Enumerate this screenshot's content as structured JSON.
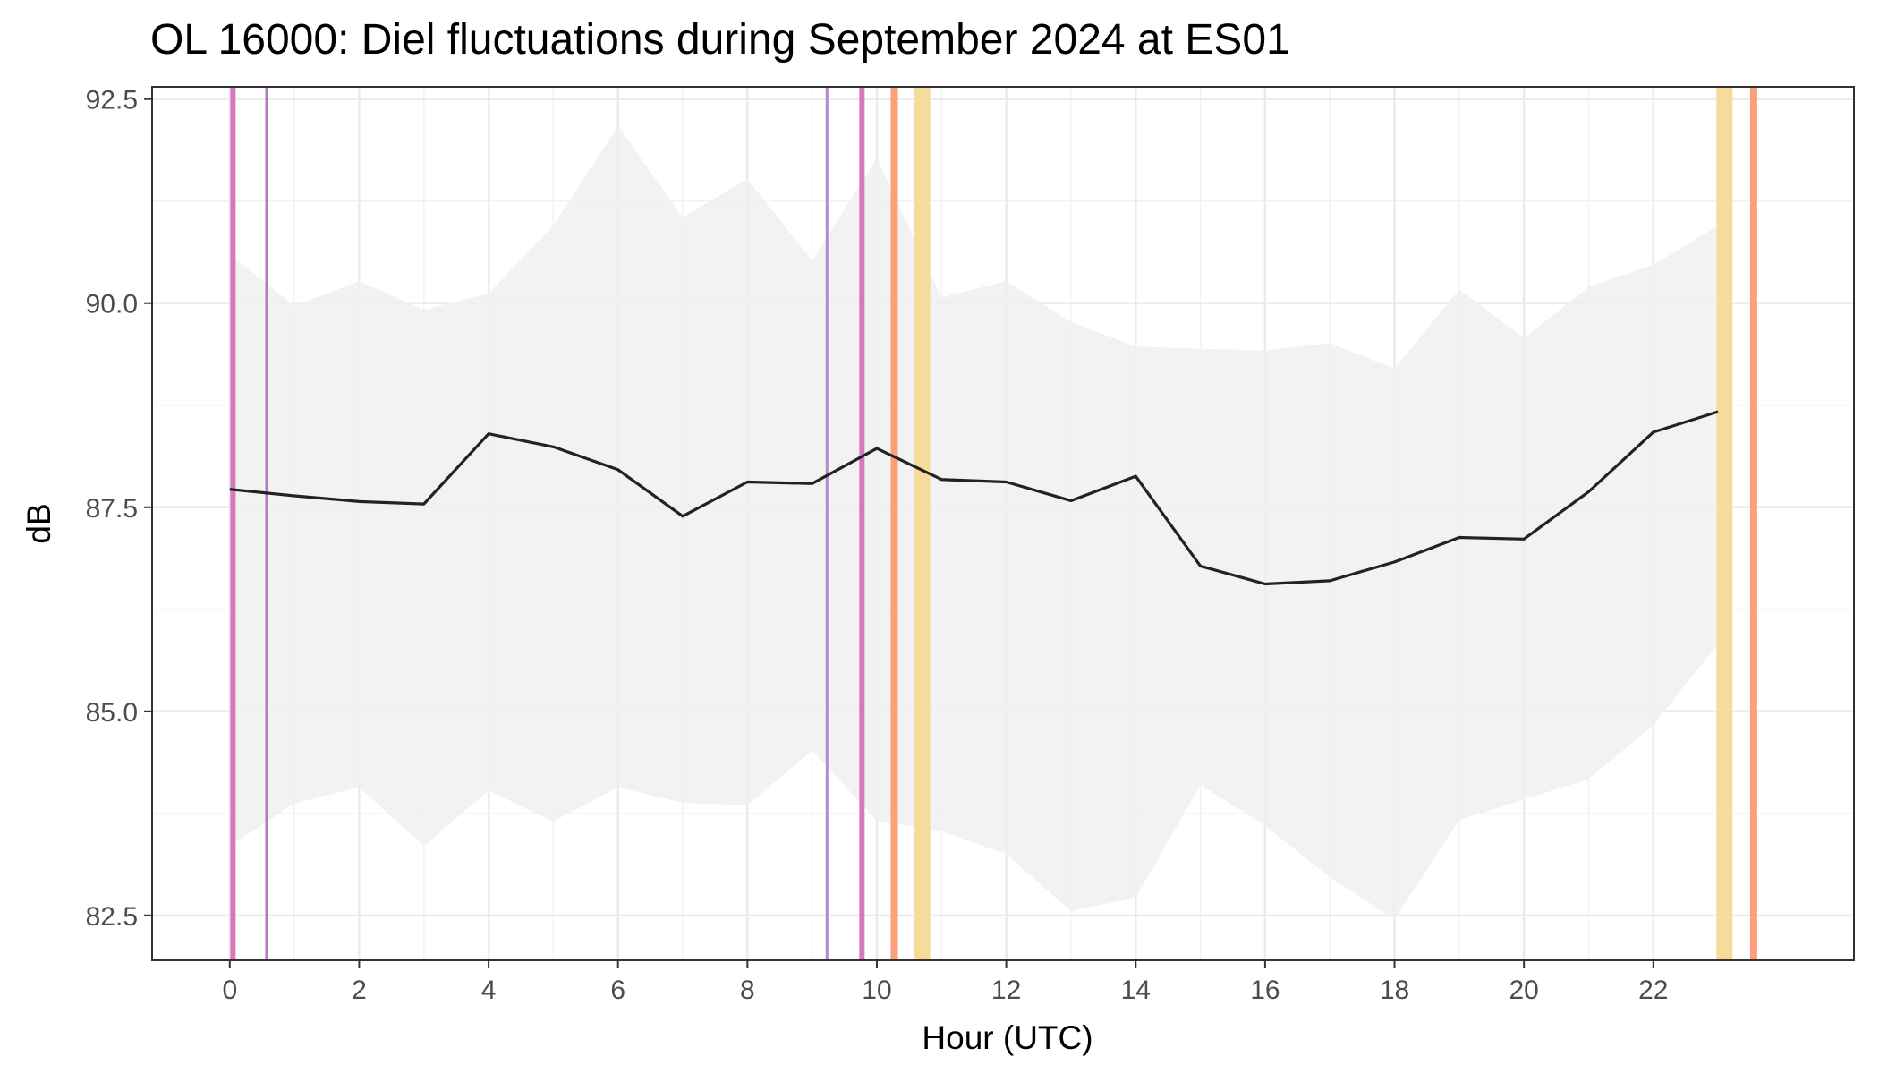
{
  "chart_data": {
    "type": "line",
    "title": "OL 16000: Diel fluctuations during September 2024 at ES01",
    "xlabel": "Hour (UTC)",
    "ylabel": "dB",
    "xlim": [
      -1.2,
      25.1
    ],
    "ylim": [
      81.95,
      92.65
    ],
    "x_ticks": [
      0,
      2,
      4,
      6,
      8,
      10,
      12,
      14,
      16,
      18,
      20,
      22
    ],
    "y_ticks": [
      82.5,
      85.0,
      87.5,
      90.0,
      92.5
    ],
    "y_tick_labels": [
      "82.5",
      "85.0",
      "87.5",
      "90.0",
      "92.5"
    ],
    "grid": true,
    "legend": "none",
    "series": [
      {
        "type": "line",
        "color": "#222222",
        "x": [
          0,
          1,
          2,
          3,
          4,
          5,
          6,
          7,
          8,
          9,
          10,
          11,
          12,
          13,
          14,
          15,
          16,
          17,
          18,
          19,
          20,
          21,
          22,
          23
        ],
        "values": [
          87.72,
          87.64,
          87.57,
          87.54,
          88.4,
          88.24,
          87.96,
          87.39,
          87.81,
          87.79,
          88.22,
          87.84,
          87.81,
          87.58,
          87.88,
          86.78,
          86.56,
          86.6,
          86.83,
          87.13,
          87.11,
          87.69,
          88.42,
          88.67
        ]
      }
    ],
    "ribbon": {
      "color": "#f0f0f0",
      "x": [
        0,
        1,
        2,
        3,
        4,
        5,
        6,
        7,
        8,
        9,
        10,
        11,
        12,
        13,
        14,
        15,
        16,
        17,
        18,
        19,
        20,
        21,
        22,
        23
      ],
      "lower": [
        83.35,
        83.87,
        84.07,
        83.35,
        84.03,
        83.65,
        84.07,
        83.88,
        83.85,
        84.52,
        83.66,
        83.53,
        83.25,
        82.55,
        82.72,
        84.1,
        83.6,
        82.97,
        82.45,
        83.67,
        83.92,
        84.17,
        84.83,
        85.83
      ],
      "upper": [
        90.6,
        89.97,
        90.27,
        89.92,
        90.12,
        90.95,
        92.17,
        91.05,
        91.52,
        90.52,
        91.78,
        90.07,
        90.27,
        89.77,
        89.47,
        89.44,
        89.42,
        89.51,
        89.2,
        90.17,
        89.57,
        90.2,
        90.47,
        90.95
      ]
    },
    "vlines": [
      {
        "x": 0.05,
        "color": "#d679ba",
        "width": 6
      },
      {
        "x": 0.57,
        "color": "#b07cc0",
        "width": 3
      },
      {
        "x": 9.23,
        "color": "#b888cf",
        "width": 3
      },
      {
        "x": 9.77,
        "color": "#d679ba",
        "width": 6
      },
      {
        "x": 10.27,
        "color": "#fca07a",
        "width": 8
      },
      {
        "x": 10.7,
        "color": "#f6dc9b",
        "width": 18
      },
      {
        "x": 23.1,
        "color": "#f6dc9b",
        "width": 18
      },
      {
        "x": 23.55,
        "color": "#fca07a",
        "width": 8
      }
    ]
  }
}
